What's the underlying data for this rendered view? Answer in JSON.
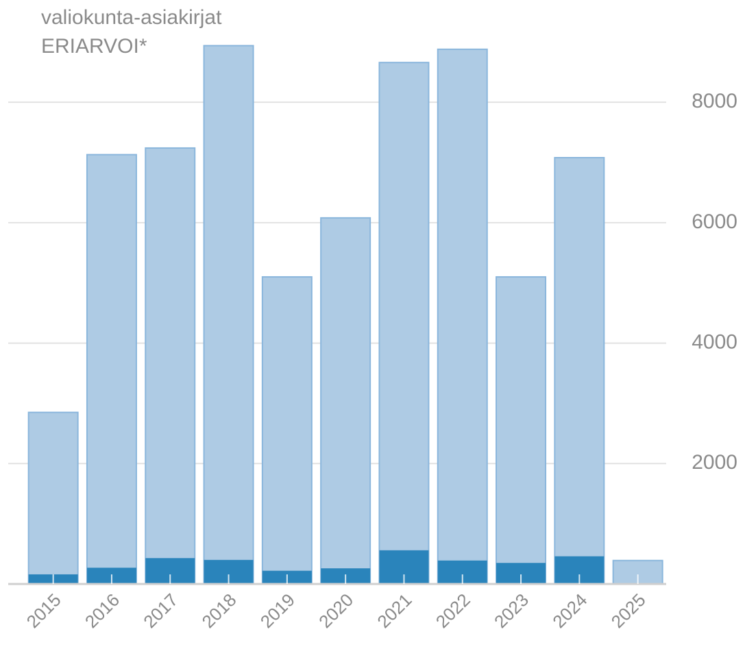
{
  "chart_data": {
    "type": "bar",
    "categories": [
      "2015",
      "2016",
      "2017",
      "2018",
      "2019",
      "2020",
      "2021",
      "2022",
      "2023",
      "2024",
      "2025"
    ],
    "series": [
      {
        "name": "valiokunta-asiakirjat",
        "color": "#aecbe4",
        "values": [
          2850,
          7130,
          7240,
          8940,
          5100,
          6080,
          8660,
          8880,
          5100,
          7080,
          390
        ]
      },
      {
        "name": "ERIARVOI*",
        "color": "#2a84bb",
        "values": [
          160,
          270,
          430,
          400,
          220,
          260,
          560,
          390,
          350,
          460,
          null
        ]
      }
    ],
    "ylim": [
      0,
      9500
    ],
    "yticks": [
      2000,
      4000,
      6000,
      8000
    ],
    "grid": true,
    "y_axis_side": "right"
  }
}
